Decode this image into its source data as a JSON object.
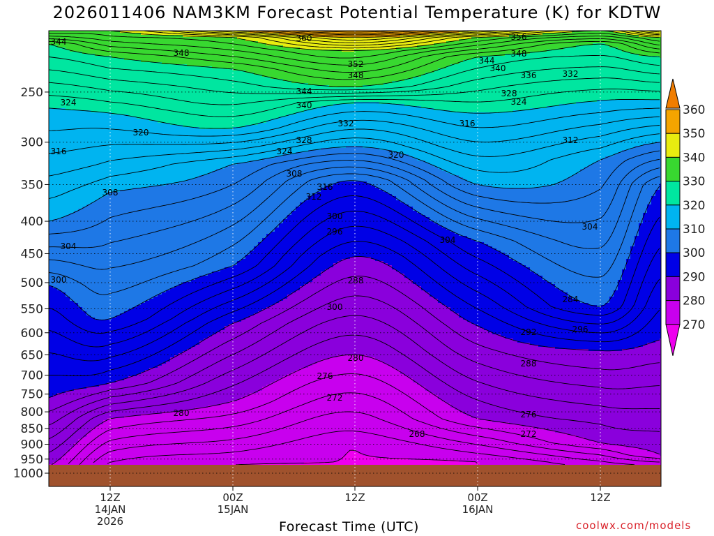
{
  "chart_data": {
    "type": "heatmap",
    "title": "2026011406 NAM3KM Forecast Potential Temperature (K) for KDTW",
    "xlabel": "Forecast Time (UTC)",
    "ylabel": "",
    "y_scale": "log",
    "y_axis": "pressure (hPa), inverted",
    "ylim": [
      1000,
      200
    ],
    "y_ticks": [
      "250",
      "300",
      "350",
      "400",
      "450",
      "500",
      "550",
      "600",
      "650",
      "700",
      "750",
      "800",
      "850",
      "900",
      "950",
      "1000"
    ],
    "x_ticks": [
      {
        "time": "12Z",
        "date": "14JAN",
        "year": "2026"
      },
      {
        "time": "00Z",
        "date": "15JAN",
        "year": ""
      },
      {
        "time": "12Z",
        "date": "",
        "year": ""
      },
      {
        "time": "00Z",
        "date": "16JAN",
        "year": ""
      },
      {
        "time": "12Z",
        "date": "",
        "year": ""
      }
    ],
    "colorbar": {
      "levels": [
        270,
        280,
        290,
        300,
        310,
        320,
        330,
        340,
        350,
        360
      ],
      "colors": [
        "#ee00ee",
        "#c800ee",
        "#8a00dc",
        "#0000e6",
        "#1e78e6",
        "#00b4f0",
        "#00e6a0",
        "#38d830",
        "#e8ec10",
        "#f4a400",
        "#f07d00"
      ]
    },
    "ground_color": "#a0522d",
    "contour_interval": 2,
    "isentropes_hPa_at_times": {
      "times": [
        "14JAN06Z",
        "14JAN12Z",
        "15JAN00Z",
        "15JAN12Z",
        "16JAN00Z",
        "16JAN12Z",
        "16JAN18Z"
      ],
      "levels": [
        270,
        280,
        290,
        300,
        310,
        320,
        330,
        340,
        350,
        360
      ],
      "pressure": [
        [
          1000,
          1000,
          970,
          920,
          960,
          1000,
          1000
        ],
        [
          975,
          820,
          770,
          650,
          820,
          895,
          935
        ],
        [
          760,
          720,
          580,
          455,
          585,
          640,
          615
        ],
        [
          505,
          570,
          470,
          345,
          430,
          545,
          350
        ],
        [
          400,
          360,
          325,
          305,
          350,
          320,
          300
        ],
        [
          265,
          270,
          285,
          260,
          270,
          258,
          257
        ],
        [
          210,
          220,
          230,
          245,
          220,
          210,
          220
        ],
        [
          200,
          200,
          205,
          215,
          205,
          200,
          205
        ],
        [
          200,
          200,
          200,
          205,
          200,
          200,
          200
        ],
        [
          200,
          200,
          200,
          200,
          200,
          200,
          200
        ]
      ]
    },
    "contour_labels": [
      "344",
      "348",
      "360",
      "356",
      "352",
      "348",
      "344",
      "340",
      "336",
      "332",
      "348",
      "344",
      "340",
      "328",
      "324",
      "324",
      "332",
      "316",
      "320",
      "328",
      "312",
      "316",
      "324",
      "320",
      "308",
      "316",
      "312",
      "308",
      "304",
      "300",
      "296",
      "304",
      "304",
      "300",
      "288",
      "284",
      "300",
      "296",
      "292",
      "280",
      "288",
      "276",
      "272",
      "276",
      "280",
      "272",
      "268"
    ]
  },
  "credit": "coolwx.com/models"
}
